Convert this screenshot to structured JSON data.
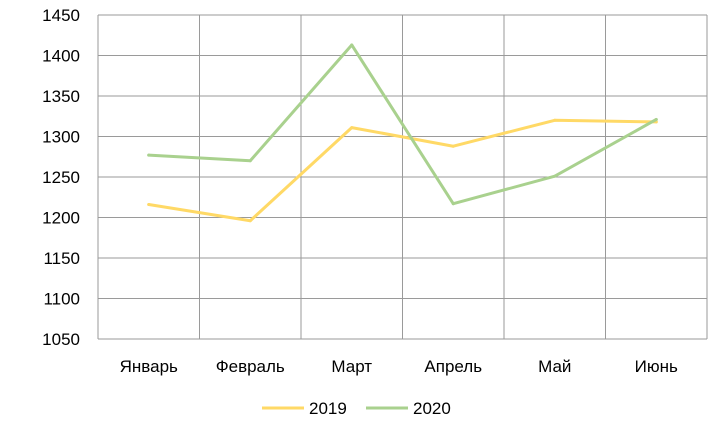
{
  "chart_data": {
    "type": "line",
    "title": "",
    "xlabel": "",
    "ylabel": "",
    "categories": [
      "Январь",
      "Февраль",
      "Март",
      "Апрель",
      "Май",
      "Июнь"
    ],
    "ylim": [
      1050,
      1450
    ],
    "yticks": [
      1050,
      1100,
      1150,
      1200,
      1250,
      1300,
      1350,
      1400,
      1450
    ],
    "grid": true,
    "legend_position": "bottom",
    "series": [
      {
        "name": "2019",
        "color": "#FFD966",
        "values": [
          1216,
          1196,
          1311,
          1288,
          1320,
          1318
        ]
      },
      {
        "name": "2020",
        "color": "#A9D18E",
        "values": [
          1277,
          1270,
          1413,
          1217,
          1251,
          1321
        ]
      }
    ]
  }
}
